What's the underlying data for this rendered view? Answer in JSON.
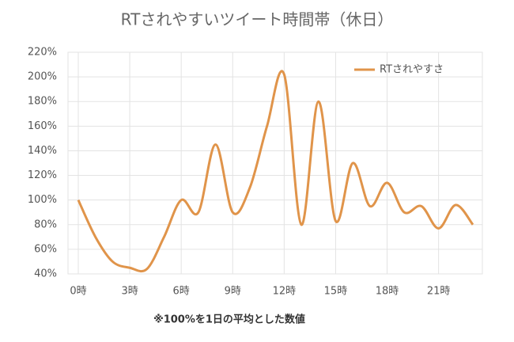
{
  "chart_data": {
    "type": "line",
    "title": "RTされやすいツイート時間帯（休日）",
    "annotation": "※100%を1日の平均とした数値",
    "categories": [
      "0時",
      null,
      null,
      "3時",
      null,
      null,
      "6時",
      null,
      null,
      "9時",
      null,
      null,
      "12時",
      null,
      null,
      "15時",
      null,
      null,
      "18時",
      null,
      null,
      "21時",
      null,
      null
    ],
    "series": [
      {
        "name": "RTされやすさ",
        "color": "#e0944a",
        "values": [
          100,
          70,
          50,
          45,
          44,
          70,
          100,
          90,
          145,
          90,
          110,
          160,
          202,
          80,
          180,
          83,
          130,
          95,
          114,
          90,
          95,
          77,
          96,
          80
        ]
      }
    ],
    "ylim": [
      40,
      220
    ],
    "yticks": [
      {
        "value": 40,
        "label": "40%"
      },
      {
        "value": 60,
        "label": "60%"
      },
      {
        "value": 80,
        "label": "80%"
      },
      {
        "value": 100,
        "label": "100%"
      },
      {
        "value": 120,
        "label": "120%"
      },
      {
        "value": 140,
        "label": "140%"
      },
      {
        "value": 160,
        "label": "160%"
      },
      {
        "value": 180,
        "label": "180%"
      },
      {
        "value": 200,
        "label": "200%"
      },
      {
        "value": 220,
        "label": "220%"
      }
    ],
    "grid": true,
    "legend": "top-right"
  }
}
